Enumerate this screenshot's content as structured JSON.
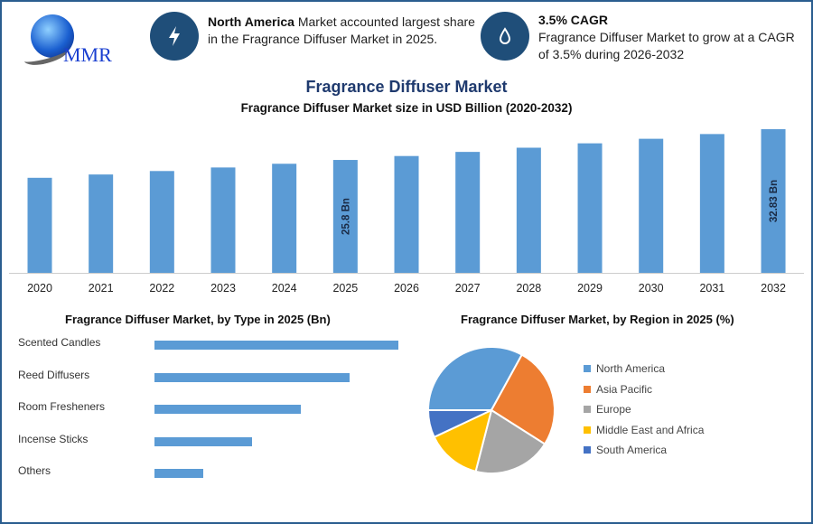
{
  "logo": {
    "text": "MMR"
  },
  "highlights": [
    {
      "icon": "lightning-icon",
      "bold": "North America",
      "text": " Market accounted largest share in the Fragrance Diffuser Market in 2025."
    },
    {
      "icon": "drop-icon",
      "bold": "3.5% CAGR",
      "text": "Fragrance Diffuser Market to grow at a CAGR of 3.5% during 2026-2032"
    }
  ],
  "colors": {
    "bar": "#5b9bd5",
    "accent": "#1f4e79"
  },
  "chart_data": [
    {
      "type": "bar",
      "title": "Fragrance Diffuser Market",
      "subtitle": "Fragrance Diffuser Market size in USD Billion (2020-2032)",
      "categories": [
        "2020",
        "2021",
        "2022",
        "2023",
        "2024",
        "2025",
        "2026",
        "2027",
        "2028",
        "2029",
        "2030",
        "2031",
        "2032"
      ],
      "values": [
        21.72,
        22.48,
        23.27,
        24.08,
        24.93,
        25.8,
        26.7,
        27.64,
        28.6,
        29.6,
        30.64,
        31.72,
        32.83
      ],
      "data_labels": {
        "2025": "25.8 Bn",
        "2032": "32.83 Bn"
      },
      "ylim": [
        0,
        33.5
      ],
      "grid": false
    },
    {
      "type": "bar",
      "orientation": "horizontal",
      "title": "Fragrance Diffuser Market, by Type in 2025 (Bn)",
      "categories": [
        "Scented Candles",
        "Reed Diffusers",
        "Room Fresheners",
        "Incense Sticks",
        "Others"
      ],
      "values": [
        5,
        4,
        3,
        2,
        1
      ]
    },
    {
      "type": "pie",
      "title": "Fragrance Diffuser Market, by Region in 2025 (%)",
      "legend": "right",
      "labels": [
        "North America",
        "Asia Pacific",
        "Europe",
        "Middle East and Africa",
        "South America"
      ],
      "values": [
        33,
        26,
        20,
        14,
        7
      ],
      "colors": [
        "#5b9bd5",
        "#ed7d31",
        "#a5a5a5",
        "#ffc000",
        "#4472c4"
      ]
    }
  ]
}
